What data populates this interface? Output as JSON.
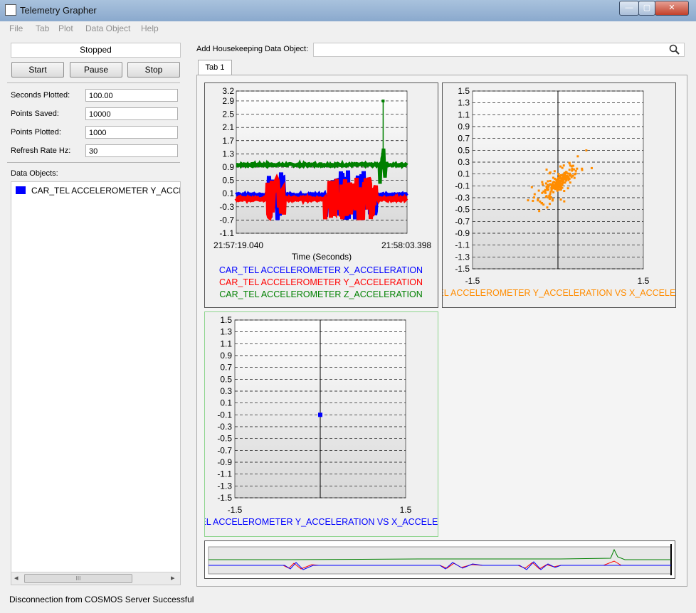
{
  "window": {
    "title": "Telemetry Grapher"
  },
  "titlebar_buttons": {
    "minimize": "—",
    "maximize": "▢",
    "close": "✕"
  },
  "menu": [
    "File",
    "Tab",
    "Plot",
    "Data Object",
    "Help"
  ],
  "controls": {
    "state": "Stopped",
    "start": "Start",
    "pause": "Pause",
    "stop": "Stop"
  },
  "settings": [
    {
      "label": "Seconds Plotted:",
      "value": "100.00"
    },
    {
      "label": "Points Saved:",
      "value": "10000"
    },
    {
      "label": "Points Plotted:",
      "value": "1000"
    },
    {
      "label": "Refresh Rate Hz:",
      "value": "30"
    }
  ],
  "data_objects": {
    "label": "Data Objects:",
    "items": [
      {
        "text": "CAR_TEL ACCELEROMETER Y_ACCELER",
        "color": "#0000ff"
      }
    ]
  },
  "add_object": {
    "label": "Add Housekeeping Data Object:",
    "value": ""
  },
  "tabs": [
    "Tab 1"
  ],
  "status": "Disconnection from COSMOS Server Successful",
  "scrollbar": {
    "left": "◂",
    "right": "▸",
    "grip": "III"
  },
  "chart_data": [
    {
      "type": "line",
      "ylim": [
        -1.1,
        3.2
      ],
      "y_ticks": [
        "3.2",
        "2.9",
        "2.5",
        "2.1",
        "1.7",
        "1.3",
        "0.9",
        "0.5",
        "0.1",
        "-0.3",
        "-0.7",
        "-1.1"
      ],
      "x_ticks": [
        "21:57:19.040",
        "21:58:03.398"
      ],
      "xlabel": "Time (Seconds)",
      "legend": [
        {
          "name": "CAR_TEL ACCELEROMETER X_ACCELERATION",
          "color": "#0000ff"
        },
        {
          "name": "CAR_TEL ACCELEROMETER Y_ACCELERATION",
          "color": "#ff0000"
        },
        {
          "name": "CAR_TEL ACCELEROMETER Z_ACCELERATION",
          "color": "#008000"
        }
      ]
    },
    {
      "type": "scatter",
      "xlim": [
        -1.5,
        1.5
      ],
      "ylim": [
        -1.5,
        1.5
      ],
      "y_ticks": [
        "1.5",
        "1.3",
        "1.1",
        "0.9",
        "0.7",
        "0.5",
        "0.3",
        "0.1",
        "-0.1",
        "-0.3",
        "-0.5",
        "-0.7",
        "-0.9",
        "-1.1",
        "-1.3",
        "-1.5"
      ],
      "x_ticks": [
        "-1.5",
        "1.5"
      ],
      "title_bottom": "CAR_TEL ACCELEROMETER Y_ACCELERATION VS X_ACCELERATION",
      "color": "#ff8c00"
    },
    {
      "type": "scatter",
      "xlim": [
        -1.5,
        1.5
      ],
      "ylim": [
        -1.5,
        1.5
      ],
      "y_ticks": [
        "1.5",
        "1.3",
        "1.1",
        "0.9",
        "0.7",
        "0.5",
        "0.3",
        "0.1",
        "-0.1",
        "-0.3",
        "-0.5",
        "-0.7",
        "-0.9",
        "-1.1",
        "-1.3",
        "-1.5"
      ],
      "x_ticks": [
        "-1.5",
        "1.5"
      ],
      "title_bottom": "CAR_TEL ACCELEROMETER Y_ACCELERATION VS X_ACCELERATION",
      "color": "#0000ff",
      "points": [
        [
          0.0,
          -0.1
        ]
      ]
    }
  ]
}
